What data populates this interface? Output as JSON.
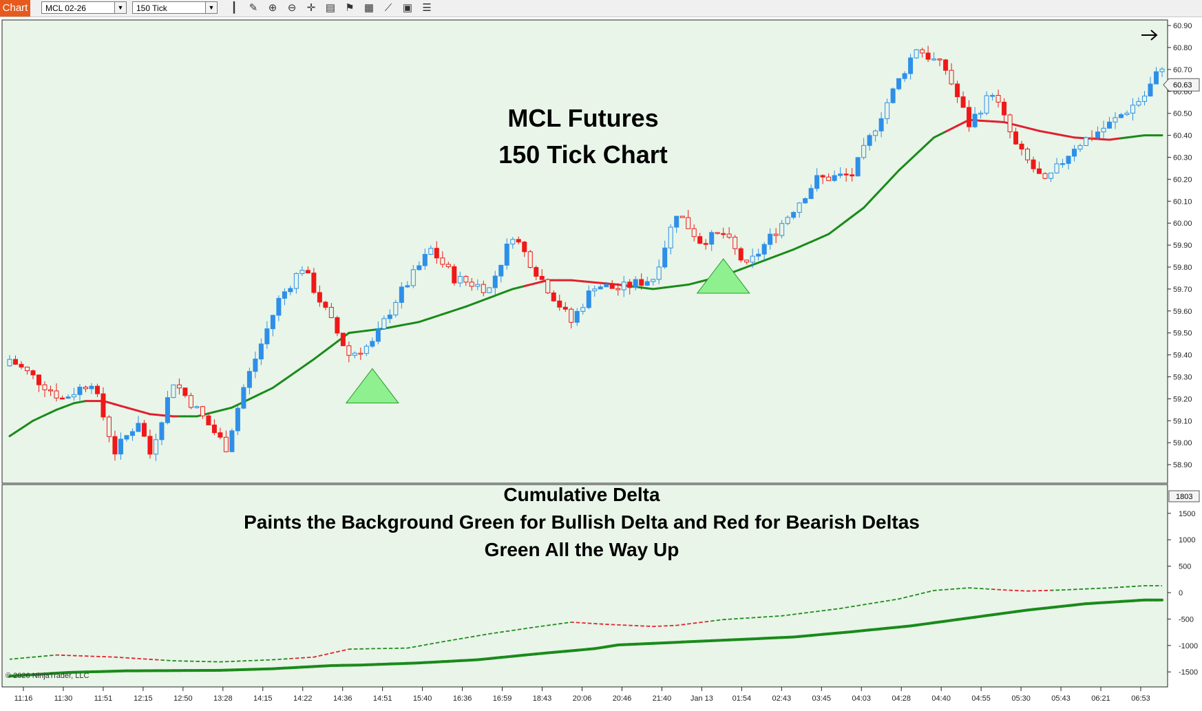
{
  "toolbar": {
    "tab_label": "Chart",
    "instrument": "MCL 02-26",
    "interval": "150 Tick",
    "tools": [
      "bars-type-icon",
      "pencil-icon",
      "zoom-in-icon",
      "zoom-out-icon",
      "crosshair-icon",
      "properties-icon",
      "strategies-icon",
      "chart-trader-icon",
      "drawing-tools-icon",
      "templates-icon",
      "list-icon"
    ]
  },
  "annotations": {
    "price_title_1": "MCL Futures",
    "price_title_2": "150 Tick Chart",
    "delta_title_1": "Cumulative Delta",
    "delta_title_2": "Paints the Background Green for Bullish Delta and Red for Bearish Deltas",
    "delta_title_3": "Green All the Way Up",
    "copyright": "© 2026 NinjaTrader, LLC"
  },
  "colors": {
    "background": "#e8f5e8",
    "up_candle": "#2e8fe8",
    "down_candle": "#f01818",
    "ma_up": "#1a8a1a",
    "ma_down": "#e0202e",
    "signal_fill": "#8ef08e",
    "signal_stroke": "#2a9a2a"
  },
  "chart_data": [
    {
      "type": "candlestick",
      "title": "MCL Futures 150 Tick Chart",
      "ylim": [
        58.8,
        60.95
      ],
      "y_ticks": [
        "60.90",
        "60.80",
        "60.70",
        "60.60",
        "60.50",
        "60.40",
        "60.30",
        "60.20",
        "60.10",
        "60.00",
        "59.90",
        "59.80",
        "59.70",
        "59.60",
        "59.50",
        "59.40",
        "59.30",
        "59.20",
        "59.10",
        "59.00",
        "58.90"
      ],
      "last_price": "60.63",
      "x_ticks": [
        "11:16",
        "11:30",
        "11:51",
        "12:15",
        "12:50",
        "13:28",
        "14:15",
        "14:22",
        "14:36",
        "14:51",
        "15:40",
        "16:36",
        "16:59",
        "18:43",
        "20:06",
        "20:46",
        "21:40",
        "Jan 13",
        "01:54",
        "02:43",
        "03:45",
        "04:03",
        "04:28",
        "04:40",
        "04:55",
        "05:30",
        "05:43",
        "06:21",
        "06:53"
      ],
      "anchors": [
        [
          0,
          59.38
        ],
        [
          5,
          59.28
        ],
        [
          9,
          59.2
        ],
        [
          14,
          59.28
        ],
        [
          18,
          58.96
        ],
        [
          22,
          59.1
        ],
        [
          24,
          58.95
        ],
        [
          28,
          59.28
        ],
        [
          32,
          59.15
        ],
        [
          37,
          58.98
        ],
        [
          40,
          59.25
        ],
        [
          46,
          59.65
        ],
        [
          50,
          59.8
        ],
        [
          54,
          59.6
        ],
        [
          58,
          59.4
        ],
        [
          62,
          59.45
        ],
        [
          66,
          59.65
        ],
        [
          72,
          59.88
        ],
        [
          76,
          59.75
        ],
        [
          82,
          59.7
        ],
        [
          86,
          59.95
        ],
        [
          90,
          59.78
        ],
        [
          96,
          59.55
        ],
        [
          100,
          59.72
        ],
        [
          104,
          59.7
        ],
        [
          110,
          59.75
        ],
        [
          114,
          60.05
        ],
        [
          118,
          59.92
        ],
        [
          122,
          59.95
        ],
        [
          126,
          59.8
        ],
        [
          132,
          60.0
        ],
        [
          138,
          60.2
        ],
        [
          144,
          60.22
        ],
        [
          150,
          60.55
        ],
        [
          155,
          60.8
        ],
        [
          160,
          60.7
        ],
        [
          164,
          60.45
        ],
        [
          168,
          60.6
        ],
        [
          172,
          60.35
        ],
        [
          177,
          60.18
        ],
        [
          182,
          60.35
        ],
        [
          188,
          60.45
        ],
        [
          194,
          60.58
        ],
        [
          197,
          60.72
        ]
      ],
      "ma_series": [
        [
          0,
          59.03
        ],
        [
          4,
          59.1
        ],
        [
          8,
          59.15
        ],
        [
          11,
          59.18
        ],
        [
          13,
          59.19
        ],
        [
          16,
          59.19
        ],
        [
          20,
          59.16
        ],
        [
          24,
          59.13
        ],
        [
          28,
          59.12
        ],
        [
          32,
          59.12
        ],
        [
          38,
          59.16
        ],
        [
          45,
          59.25
        ],
        [
          52,
          59.38
        ],
        [
          58,
          59.5
        ],
        [
          64,
          59.52
        ],
        [
          70,
          59.55
        ],
        [
          78,
          59.62
        ],
        [
          86,
          59.7
        ],
        [
          92,
          59.74
        ],
        [
          96,
          59.74
        ],
        [
          100,
          59.73
        ],
        [
          104,
          59.72
        ],
        [
          110,
          59.7
        ],
        [
          116,
          59.72
        ],
        [
          122,
          59.76
        ],
        [
          128,
          59.82
        ],
        [
          134,
          59.88
        ],
        [
          140,
          59.95
        ],
        [
          146,
          60.07
        ],
        [
          152,
          60.24
        ],
        [
          158,
          60.39
        ],
        [
          164,
          60.47
        ],
        [
          170,
          60.46
        ],
        [
          176,
          60.42
        ],
        [
          182,
          60.39
        ],
        [
          188,
          60.38
        ],
        [
          194,
          60.4
        ]
      ],
      "ma_down_ranges": [
        [
          13,
          29
        ],
        [
          88,
          106
        ],
        [
          160,
          190
        ]
      ],
      "signal_triangles": [
        62,
        122
      ]
    },
    {
      "type": "line",
      "title": "Cumulative Delta",
      "ylim": [
        -1700,
        1850
      ],
      "y_ticks": [
        1500,
        1000,
        500,
        0,
        -500,
        -1000,
        -1500
      ],
      "last_value": "1803",
      "series": [
        {
          "type": "thick",
          "anchors": [
            [
              0,
              -1580
            ],
            [
              10,
              -1510
            ],
            [
              20,
              -1480
            ],
            [
              36,
              -1470
            ],
            [
              45,
              -1440
            ],
            [
              55,
              -1380
            ],
            [
              60,
              -1370
            ],
            [
              70,
              -1330
            ],
            [
              80,
              -1270
            ],
            [
              90,
              -1160
            ],
            [
              100,
              -1060
            ],
            [
              104,
              -990
            ],
            [
              114,
              -940
            ],
            [
              124,
              -890
            ],
            [
              134,
              -840
            ],
            [
              144,
              -740
            ],
            [
              154,
              -630
            ],
            [
              164,
              -480
            ],
            [
              174,
              -330
            ],
            [
              184,
              -210
            ],
            [
              194,
              -140
            ]
          ]
        },
        {
          "type": "dashed",
          "anchors": [
            [
              0,
              -1260
            ],
            [
              8,
              -1180
            ],
            [
              18,
              -1220
            ],
            [
              28,
              -1290
            ],
            [
              36,
              -1310
            ],
            [
              45,
              -1270
            ],
            [
              52,
              -1220
            ],
            [
              58,
              -1070
            ],
            [
              62,
              -1060
            ],
            [
              68,
              -1050
            ],
            [
              74,
              -930
            ],
            [
              82,
              -780
            ],
            [
              90,
              -650
            ],
            [
              96,
              -560
            ],
            [
              102,
              -600
            ],
            [
              110,
              -640
            ],
            [
              114,
              -620
            ],
            [
              122,
              -510
            ],
            [
              132,
              -440
            ],
            [
              142,
              -300
            ],
            [
              152,
              -120
            ],
            [
              158,
              40
            ],
            [
              164,
              90
            ],
            [
              170,
              50
            ],
            [
              174,
              30
            ],
            [
              180,
              50
            ],
            [
              188,
              90
            ],
            [
              194,
              130
            ]
          ]
        }
      ],
      "dashed_down_ranges": [
        [
          8,
          26
        ],
        [
          48,
          58
        ],
        [
          96,
          120
        ],
        [
          168,
          178
        ]
      ]
    }
  ]
}
